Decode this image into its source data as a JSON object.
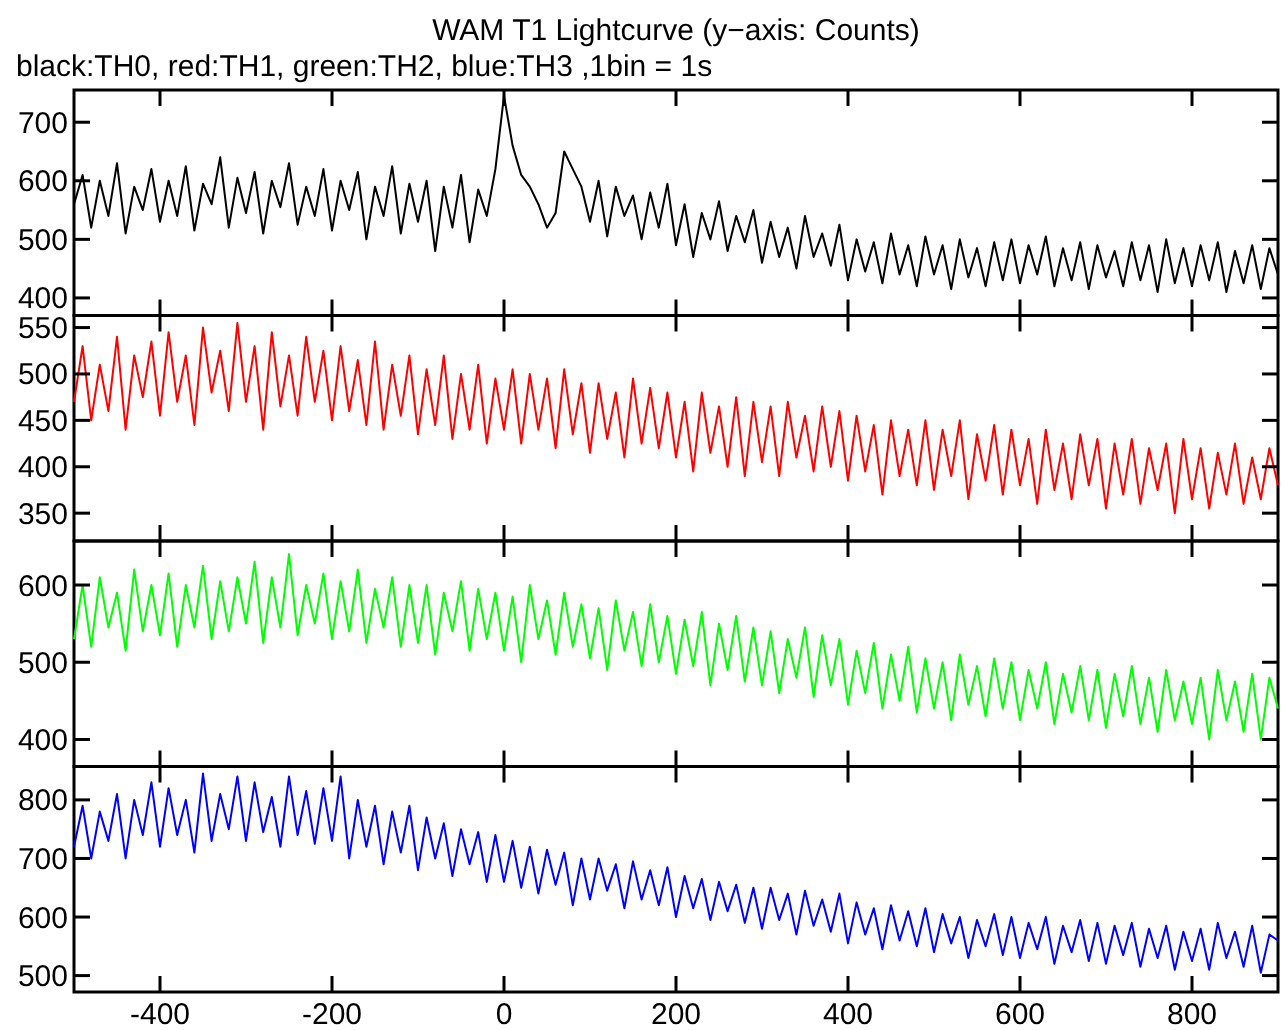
{
  "chart_data": [
    {
      "type": "line",
      "title": "WAM T1 Lightcurve (y−axis: Counts)",
      "subtitle": "black:TH0, red:TH1, green:TH2, blue:TH3 ,1bin = 1s",
      "tick_labels": "y",
      "xlim": [
        -500,
        900
      ],
      "xticks": [
        -400,
        -200,
        0,
        200,
        400,
        600,
        800
      ],
      "ylim": [
        370,
        755
      ],
      "yticks": [
        400,
        500,
        600,
        700
      ],
      "x": [
        -500,
        -490,
        -480,
        -470,
        -460,
        -450,
        -440,
        -430,
        -420,
        -410,
        -400,
        -390,
        -380,
        -370,
        -360,
        -350,
        -340,
        -330,
        -320,
        -310,
        -300,
        -290,
        -280,
        -270,
        -260,
        -250,
        -240,
        -230,
        -220,
        -210,
        -200,
        -190,
        -180,
        -170,
        -160,
        -150,
        -140,
        -130,
        -120,
        -110,
        -100,
        -90,
        -80,
        -70,
        -60,
        -50,
        -40,
        -30,
        -20,
        -10,
        0,
        10,
        20,
        30,
        40,
        50,
        60,
        70,
        80,
        90,
        100,
        110,
        120,
        130,
        140,
        150,
        160,
        170,
        180,
        190,
        200,
        210,
        220,
        230,
        240,
        250,
        260,
        270,
        280,
        290,
        300,
        310,
        320,
        330,
        340,
        350,
        360,
        370,
        380,
        390,
        400,
        410,
        420,
        430,
        440,
        450,
        460,
        470,
        480,
        490,
        500,
        510,
        520,
        530,
        540,
        550,
        560,
        570,
        580,
        590,
        600,
        610,
        620,
        630,
        640,
        650,
        660,
        670,
        680,
        690,
        700,
        710,
        720,
        730,
        740,
        750,
        760,
        770,
        780,
        790,
        800,
        810,
        820,
        830,
        840,
        850,
        860,
        870,
        880,
        890,
        900
      ],
      "series": [
        {
          "color": "#000000",
          "values": [
            560,
            610,
            520,
            600,
            540,
            630,
            510,
            590,
            550,
            620,
            530,
            600,
            540,
            625,
            515,
            595,
            560,
            640,
            520,
            605,
            545,
            615,
            510,
            600,
            555,
            630,
            525,
            590,
            540,
            620,
            515,
            600,
            550,
            615,
            500,
            590,
            540,
            625,
            510,
            595,
            530,
            600,
            480,
            590,
            520,
            610,
            495,
            585,
            540,
            620,
            745,
            660,
            610,
            590,
            560,
            520,
            545,
            650,
            620,
            590,
            530,
            600,
            505,
            590,
            540,
            575,
            500,
            580,
            520,
            595,
            490,
            560,
            470,
            545,
            500,
            565,
            480,
            540,
            495,
            550,
            460,
            530,
            470,
            520,
            450,
            540,
            470,
            510,
            455,
            525,
            430,
            500,
            445,
            495,
            425,
            510,
            440,
            490,
            420,
            505,
            440,
            490,
            415,
            500,
            435,
            485,
            420,
            495,
            430,
            500,
            425,
            490,
            440,
            505,
            420,
            485,
            430,
            495,
            415,
            490,
            435,
            480,
            420,
            495,
            430,
            490,
            410,
            500,
            425,
            485,
            420,
            490,
            430,
            495,
            410,
            480,
            425,
            490,
            415,
            485,
            440
          ]
        }
      ]
    },
    {
      "type": "line",
      "tick_labels": "y",
      "xlim": [
        -500,
        900
      ],
      "xticks": [
        -400,
        -200,
        0,
        200,
        400,
        600,
        800
      ],
      "ylim": [
        320,
        563
      ],
      "yticks": [
        350,
        400,
        450,
        500,
        550
      ],
      "x": [
        -500,
        -490,
        -480,
        -470,
        -460,
        -450,
        -440,
        -430,
        -420,
        -410,
        -400,
        -390,
        -380,
        -370,
        -360,
        -350,
        -340,
        -330,
        -320,
        -310,
        -300,
        -290,
        -280,
        -270,
        -260,
        -250,
        -240,
        -230,
        -220,
        -210,
        -200,
        -190,
        -180,
        -170,
        -160,
        -150,
        -140,
        -130,
        -120,
        -110,
        -100,
        -90,
        -80,
        -70,
        -60,
        -50,
        -40,
        -30,
        -20,
        -10,
        0,
        10,
        20,
        30,
        40,
        50,
        60,
        70,
        80,
        90,
        100,
        110,
        120,
        130,
        140,
        150,
        160,
        170,
        180,
        190,
        200,
        210,
        220,
        230,
        240,
        250,
        260,
        270,
        280,
        290,
        300,
        310,
        320,
        330,
        340,
        350,
        360,
        370,
        380,
        390,
        400,
        410,
        420,
        430,
        440,
        450,
        460,
        470,
        480,
        490,
        500,
        510,
        520,
        530,
        540,
        550,
        560,
        570,
        580,
        590,
        600,
        610,
        620,
        630,
        640,
        650,
        660,
        670,
        680,
        690,
        700,
        710,
        720,
        730,
        740,
        750,
        760,
        770,
        780,
        790,
        800,
        810,
        820,
        830,
        840,
        850,
        860,
        870,
        880,
        890,
        900
      ],
      "series": [
        {
          "color": "#ff0000",
          "values": [
            470,
            530,
            450,
            510,
            460,
            540,
            440,
            520,
            475,
            535,
            455,
            545,
            470,
            520,
            445,
            550,
            480,
            525,
            460,
            555,
            470,
            530,
            440,
            545,
            465,
            520,
            455,
            540,
            470,
            525,
            450,
            530,
            460,
            515,
            445,
            535,
            440,
            510,
            455,
            520,
            435,
            505,
            445,
            520,
            430,
            500,
            440,
            510,
            425,
            495,
            440,
            505,
            425,
            500,
            440,
            495,
            420,
            505,
            435,
            490,
            415,
            490,
            430,
            480,
            410,
            495,
            425,
            485,
            420,
            480,
            410,
            470,
            395,
            480,
            415,
            465,
            400,
            475,
            390,
            470,
            405,
            465,
            390,
            470,
            410,
            455,
            395,
            465,
            400,
            460,
            385,
            455,
            395,
            445,
            370,
            450,
            390,
            440,
            380,
            450,
            375,
            440,
            390,
            450,
            365,
            435,
            385,
            445,
            370,
            440,
            380,
            430,
            360,
            440,
            375,
            425,
            365,
            435,
            380,
            430,
            355,
            425,
            370,
            430,
            360,
            420,
            375,
            425,
            350,
            430,
            365,
            420,
            355,
            415,
            370,
            425,
            360,
            410,
            365,
            420,
            380
          ]
        }
      ]
    },
    {
      "type": "line",
      "tick_labels": "y",
      "xlim": [
        -500,
        900
      ],
      "xticks": [
        -400,
        -200,
        0,
        200,
        400,
        600,
        800
      ],
      "ylim": [
        365,
        657
      ],
      "yticks": [
        400,
        500,
        600
      ],
      "x": [
        -500,
        -490,
        -480,
        -470,
        -460,
        -450,
        -440,
        -430,
        -420,
        -410,
        -400,
        -390,
        -380,
        -370,
        -360,
        -350,
        -340,
        -330,
        -320,
        -310,
        -300,
        -290,
        -280,
        -270,
        -260,
        -250,
        -240,
        -230,
        -220,
        -210,
        -200,
        -190,
        -180,
        -170,
        -160,
        -150,
        -140,
        -130,
        -120,
        -110,
        -100,
        -90,
        -80,
        -70,
        -60,
        -50,
        -40,
        -30,
        -20,
        -10,
        0,
        10,
        20,
        30,
        40,
        50,
        60,
        70,
        80,
        90,
        100,
        110,
        120,
        130,
        140,
        150,
        160,
        170,
        180,
        190,
        200,
        210,
        220,
        230,
        240,
        250,
        260,
        270,
        280,
        290,
        300,
        310,
        320,
        330,
        340,
        350,
        360,
        370,
        380,
        390,
        400,
        410,
        420,
        430,
        440,
        450,
        460,
        470,
        480,
        490,
        500,
        510,
        520,
        530,
        540,
        550,
        560,
        570,
        580,
        590,
        600,
        610,
        620,
        630,
        640,
        650,
        660,
        670,
        680,
        690,
        700,
        710,
        720,
        730,
        740,
        750,
        760,
        770,
        780,
        790,
        800,
        810,
        820,
        830,
        840,
        850,
        860,
        870,
        880,
        890,
        900
      ],
      "series": [
        {
          "color": "#00ff00",
          "values": [
            530,
            600,
            520,
            610,
            545,
            590,
            515,
            620,
            540,
            600,
            535,
            615,
            520,
            600,
            545,
            625,
            530,
            605,
            540,
            610,
            550,
            630,
            525,
            610,
            545,
            640,
            535,
            600,
            550,
            615,
            530,
            605,
            540,
            620,
            525,
            595,
            545,
            610,
            520,
            600,
            525,
            600,
            510,
            590,
            540,
            605,
            515,
            595,
            530,
            590,
            515,
            585,
            500,
            600,
            530,
            580,
            510,
            590,
            520,
            575,
            505,
            570,
            490,
            580,
            515,
            565,
            495,
            575,
            500,
            560,
            485,
            555,
            495,
            565,
            470,
            550,
            490,
            560,
            475,
            545,
            470,
            540,
            460,
            530,
            480,
            545,
            455,
            535,
            470,
            530,
            445,
            515,
            460,
            525,
            440,
            510,
            450,
            520,
            435,
            505,
            440,
            500,
            425,
            510,
            445,
            495,
            430,
            505,
            440,
            500,
            425,
            490,
            440,
            500,
            420,
            485,
            435,
            495,
            425,
            490,
            415,
            485,
            430,
            495,
            420,
            480,
            410,
            490,
            425,
            475,
            420,
            480,
            400,
            490,
            425,
            475,
            410,
            485,
            400,
            480,
            440
          ]
        }
      ]
    },
    {
      "type": "line",
      "xlim": [
        -500,
        900
      ],
      "xticks": [
        -400,
        -200,
        0,
        200,
        400,
        600,
        800
      ],
      "ylim": [
        472,
        857
      ],
      "yticks": [
        500,
        600,
        700,
        800
      ],
      "x": [
        -500,
        -490,
        -480,
        -470,
        -460,
        -450,
        -440,
        -430,
        -420,
        -410,
        -400,
        -390,
        -380,
        -370,
        -360,
        -350,
        -340,
        -330,
        -320,
        -310,
        -300,
        -290,
        -280,
        -270,
        -260,
        -250,
        -240,
        -230,
        -220,
        -210,
        -200,
        -190,
        -180,
        -170,
        -160,
        -150,
        -140,
        -130,
        -120,
        -110,
        -100,
        -90,
        -80,
        -70,
        -60,
        -50,
        -40,
        -30,
        -20,
        -10,
        0,
        10,
        20,
        30,
        40,
        50,
        60,
        70,
        80,
        90,
        100,
        110,
        120,
        130,
        140,
        150,
        160,
        170,
        180,
        190,
        200,
        210,
        220,
        230,
        240,
        250,
        260,
        270,
        280,
        290,
        300,
        310,
        320,
        330,
        340,
        350,
        360,
        370,
        380,
        390,
        400,
        410,
        420,
        430,
        440,
        450,
        460,
        470,
        480,
        490,
        500,
        510,
        520,
        530,
        540,
        550,
        560,
        570,
        580,
        590,
        600,
        610,
        620,
        630,
        640,
        650,
        660,
        670,
        680,
        690,
        700,
        710,
        720,
        730,
        740,
        750,
        760,
        770,
        780,
        790,
        800,
        810,
        820,
        830,
        840,
        850,
        860,
        870,
        880,
        890,
        900
      ],
      "series": [
        {
          "color": "#0000ff",
          "values": [
            720,
            790,
            700,
            780,
            730,
            810,
            700,
            800,
            740,
            830,
            720,
            820,
            740,
            800,
            710,
            845,
            730,
            810,
            750,
            840,
            730,
            830,
            745,
            805,
            720,
            840,
            740,
            815,
            725,
            820,
            730,
            840,
            700,
            800,
            720,
            790,
            690,
            780,
            710,
            790,
            680,
            770,
            700,
            760,
            670,
            750,
            690,
            745,
            660,
            740,
            660,
            730,
            650,
            720,
            640,
            715,
            655,
            710,
            620,
            700,
            630,
            700,
            645,
            690,
            615,
            695,
            630,
            680,
            620,
            685,
            600,
            670,
            615,
            665,
            595,
            660,
            610,
            655,
            590,
            650,
            580,
            650,
            595,
            640,
            570,
            645,
            585,
            630,
            575,
            640,
            555,
            625,
            570,
            615,
            545,
            620,
            560,
            610,
            550,
            615,
            540,
            605,
            555,
            600,
            530,
            595,
            550,
            605,
            535,
            600,
            530,
            590,
            545,
            600,
            520,
            585,
            540,
            595,
            525,
            590,
            520,
            585,
            535,
            590,
            515,
            580,
            530,
            585,
            510,
            575,
            525,
            580,
            510,
            590,
            530,
            575,
            515,
            585,
            505,
            570,
            560
          ]
        }
      ]
    }
  ]
}
